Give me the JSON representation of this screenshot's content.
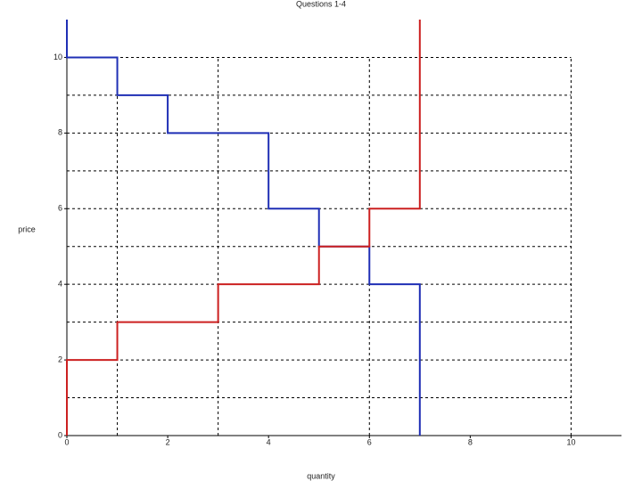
{
  "chart_data": {
    "type": "line",
    "title": "Questions 1-4",
    "x_label": "quantity",
    "y_label": "price",
    "xlim": [
      0,
      11
    ],
    "ylim": [
      0,
      11
    ],
    "xticks": [
      0,
      2,
      4,
      6,
      8,
      10
    ],
    "yticks": [
      0,
      2,
      4,
      6,
      8,
      10
    ],
    "xgrid": [
      1,
      3,
      6,
      10
    ],
    "ygrid": [
      1,
      2,
      3,
      4,
      5,
      6,
      7,
      8,
      9,
      10
    ],
    "series": [
      {
        "color": "#1f2fb5",
        "x": [
          0,
          0,
          1,
          1,
          2,
          2,
          4,
          4,
          5,
          5,
          6,
          6,
          7,
          7
        ],
        "values": [
          11,
          10,
          10,
          9,
          9,
          8,
          8,
          6,
          6,
          5,
          5,
          4,
          4,
          0
        ]
      },
      {
        "color": "#cc2020",
        "x": [
          0,
          0,
          1,
          1,
          3,
          3,
          5,
          5,
          6,
          6,
          7,
          7
        ],
        "values": [
          0,
          2,
          2,
          3,
          3,
          4,
          4,
          5,
          5,
          6,
          6,
          11
        ]
      }
    ]
  }
}
